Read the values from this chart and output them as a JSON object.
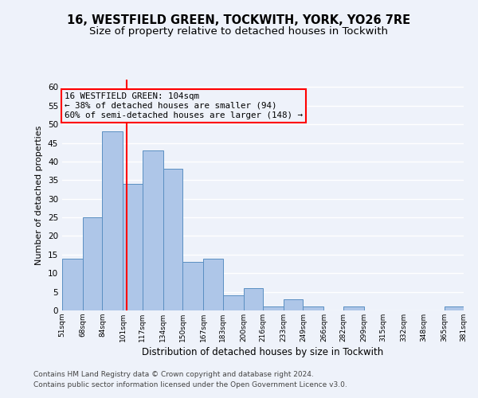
{
  "title": "16, WESTFIELD GREEN, TOCKWITH, YORK, YO26 7RE",
  "subtitle": "Size of property relative to detached houses in Tockwith",
  "xlabel": "Distribution of detached houses by size in Tockwith",
  "ylabel": "Number of detached properties",
  "bar_edges": [
    51,
    68,
    84,
    101,
    117,
    134,
    150,
    167,
    183,
    200,
    216,
    233,
    249,
    266,
    282,
    299,
    315,
    332,
    348,
    365,
    381
  ],
  "bar_heights": [
    14,
    25,
    48,
    34,
    43,
    38,
    13,
    14,
    4,
    6,
    1,
    3,
    1,
    0,
    1,
    0,
    0,
    0,
    0,
    1
  ],
  "bar_color": "#aec6e8",
  "bar_edge_color": "#5a8fc2",
  "vline_x": 104,
  "vline_color": "red",
  "ylim": [
    0,
    62
  ],
  "yticks": [
    0,
    5,
    10,
    15,
    20,
    25,
    30,
    35,
    40,
    45,
    50,
    55,
    60
  ],
  "annotation_box_text": "16 WESTFIELD GREEN: 104sqm\n← 38% of detached houses are smaller (94)\n60% of semi-detached houses are larger (148) →",
  "footer_line1": "Contains HM Land Registry data © Crown copyright and database right 2024.",
  "footer_line2": "Contains public sector information licensed under the Open Government Licence v3.0.",
  "background_color": "#eef2fa",
  "grid_color": "#ffffff",
  "title_fontsize": 10.5,
  "subtitle_fontsize": 9.5,
  "xlabel_fontsize": 8.5,
  "ylabel_fontsize": 8,
  "footer_fontsize": 6.5,
  "annot_fontsize": 7.8,
  "ytick_fontsize": 7.5,
  "xtick_fontsize": 6.5
}
